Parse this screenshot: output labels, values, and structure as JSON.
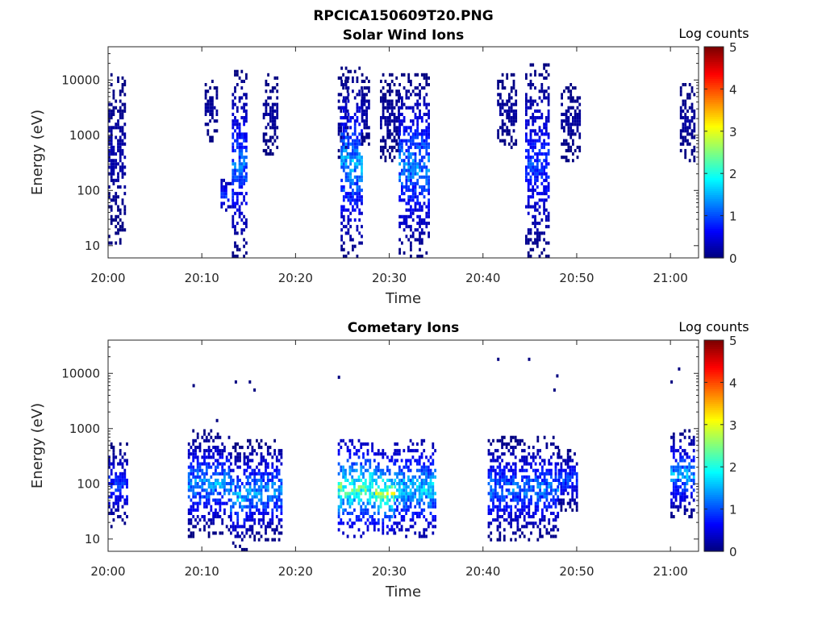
{
  "figure_title": "RPCICA150609T20.PNG",
  "chart_data": [
    {
      "type": "heatmap",
      "title": "Solar Wind Ions",
      "xlabel": "Time",
      "ylabel": "Energy (eV)",
      "x_ticks": [
        "20:00",
        "20:10",
        "20:20",
        "20:30",
        "20:40",
        "20:50",
        "21:00"
      ],
      "y_ticks": [
        "10",
        "100",
        "1000",
        "10000"
      ],
      "y_scale": "log",
      "ylim": [
        6,
        40000
      ],
      "xlim": [
        "20:00",
        "21:03"
      ],
      "colorbar": {
        "label": "Log counts",
        "ticks": [
          "0",
          "1",
          "2",
          "3",
          "4",
          "5"
        ],
        "range": [
          0,
          5
        ],
        "colormap": "jet"
      },
      "bursts": [
        {
          "t": [
            0.0,
            1.9
          ],
          "e": [
            10,
            15000
          ],
          "v": [
            0,
            0.3
          ]
        },
        {
          "t": [
            10.3,
            11.5
          ],
          "e": [
            700,
            10000
          ],
          "v": [
            0,
            0.2
          ]
        },
        {
          "t": [
            12.0,
            13.2
          ],
          "e": [
            40,
            150
          ],
          "v": [
            0.2,
            1.2
          ]
        },
        {
          "t": [
            13.2,
            14.8
          ],
          "e": [
            5,
            14000
          ],
          "v": [
            0,
            1.5
          ]
        },
        {
          "t": [
            16.5,
            18.0
          ],
          "e": [
            400,
            12000
          ],
          "v": [
            0,
            0.2
          ]
        },
        {
          "t": [
            24.5,
            25.5
          ],
          "e": [
            300,
            12000
          ],
          "v": [
            0,
            0.2
          ]
        },
        {
          "t": [
            24.8,
            27.0
          ],
          "e": [
            5,
            16000
          ],
          "v": [
            0,
            1.9
          ]
        },
        {
          "t": [
            27.0,
            27.8
          ],
          "e": [
            500,
            12000
          ],
          "v": [
            0,
            0.3
          ]
        },
        {
          "t": [
            29.0,
            31.0
          ],
          "e": [
            300,
            12000
          ],
          "v": [
            0,
            0.2
          ]
        },
        {
          "t": [
            31.0,
            34.2
          ],
          "e": [
            5,
            13000
          ],
          "v": [
            0,
            1.7
          ]
        },
        {
          "t": [
            41.5,
            43.5
          ],
          "e": [
            500,
            13000
          ],
          "v": [
            0,
            0.2
          ]
        },
        {
          "t": [
            44.5,
            47.0
          ],
          "e": [
            5,
            18000
          ],
          "v": [
            0,
            1.2
          ]
        },
        {
          "t": [
            48.3,
            50.3
          ],
          "e": [
            300,
            9000
          ],
          "v": [
            0,
            0.2
          ]
        },
        {
          "t": [
            61.0,
            62.5
          ],
          "e": [
            300,
            9000
          ],
          "v": [
            0,
            0.2
          ]
        }
      ]
    },
    {
      "type": "heatmap",
      "title": "Cometary Ions",
      "xlabel": "Time",
      "ylabel": "Energy (eV)",
      "x_ticks": [
        "20:00",
        "20:10",
        "20:20",
        "20:30",
        "20:40",
        "20:50",
        "21:00"
      ],
      "y_ticks": [
        "10",
        "100",
        "1000",
        "10000"
      ],
      "y_scale": "log",
      "ylim": [
        6,
        40000
      ],
      "xlim": [
        "20:00",
        "21:03"
      ],
      "colorbar": {
        "label": "Log counts",
        "ticks": [
          "0",
          "1",
          "2",
          "3",
          "4",
          "5"
        ],
        "range": [
          0,
          5
        ],
        "colormap": "jet"
      },
      "bursts": [
        {
          "t": [
            0.0,
            2.0
          ],
          "e": [
            15,
            500
          ],
          "v": [
            0,
            1.2
          ]
        },
        {
          "t": [
            8.5,
            13.0
          ],
          "e": [
            10,
            900
          ],
          "v": [
            0,
            1.8
          ]
        },
        {
          "t": [
            13.0,
            14.8
          ],
          "e": [
            6,
            500
          ],
          "v": [
            0,
            2.0
          ]
        },
        {
          "t": [
            14.8,
            18.5
          ],
          "e": [
            8,
            600
          ],
          "v": [
            0,
            1.8
          ]
        },
        {
          "t": [
            24.5,
            28.5
          ],
          "e": [
            10,
            600
          ],
          "v": [
            0.3,
            2.9
          ]
        },
        {
          "t": [
            28.5,
            30.5
          ],
          "e": [
            10,
            400
          ],
          "v": [
            0.3,
            3.3
          ]
        },
        {
          "t": [
            30.5,
            35.0
          ],
          "e": [
            10,
            600
          ],
          "v": [
            0.2,
            2.2
          ]
        },
        {
          "t": [
            40.5,
            48.0
          ],
          "e": [
            8,
            700
          ],
          "v": [
            0,
            1.6
          ]
        },
        {
          "t": [
            48.0,
            50.0
          ],
          "e": [
            30,
            400
          ],
          "v": [
            0,
            1.3
          ]
        },
        {
          "t": [
            60.0,
            62.5
          ],
          "e": [
            20,
            900
          ],
          "v": [
            0,
            1.9
          ]
        }
      ],
      "sparse_points": [
        {
          "t": 9.0,
          "e": 6000
        },
        {
          "t": 11.5,
          "e": 1400
        },
        {
          "t": 13.5,
          "e": 7000
        },
        {
          "t": 15.0,
          "e": 7000
        },
        {
          "t": 15.5,
          "e": 5000
        },
        {
          "t": 24.5,
          "e": 8500
        },
        {
          "t": 41.5,
          "e": 18000
        },
        {
          "t": 44.8,
          "e": 18000
        },
        {
          "t": 47.5,
          "e": 5000
        },
        {
          "t": 47.8,
          "e": 9000
        },
        {
          "t": 60.0,
          "e": 7000
        },
        {
          "t": 60.8,
          "e": 12000
        }
      ]
    }
  ]
}
